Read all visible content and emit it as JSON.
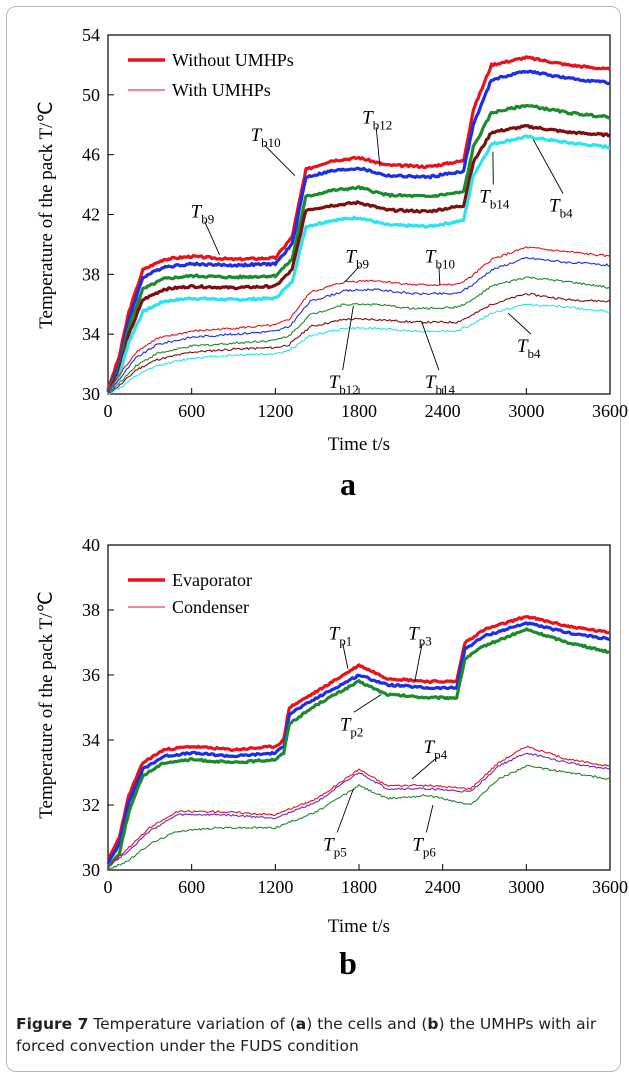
{
  "caption": {
    "label": "Figure 7",
    "parts": [
      " Temperature variation of (",
      "a",
      ") the cells and (",
      "b",
      ") the UMHPs with air forced convection under the FUDS condition"
    ]
  },
  "chart_data": [
    {
      "panel": "a",
      "type": "line",
      "xlabel": "Time t/s",
      "ylabel": "Temperature of the pack T/℃",
      "xlim": [
        0,
        3600
      ],
      "ylim": [
        30,
        54
      ],
      "xticks": [
        0,
        600,
        1200,
        1800,
        2400,
        3000,
        3600
      ],
      "yticks": [
        30,
        34,
        38,
        42,
        46,
        50,
        54
      ],
      "legend": [
        {
          "name": "Without UMHPs",
          "style": "thick",
          "color": "#e8121a"
        },
        {
          "name": "With UMHPs",
          "style": "thin",
          "color": "#e8121a"
        }
      ],
      "series": [
        {
          "name": "Tb9 (without)",
          "group": "Without UMHPs",
          "color": "#e8121a",
          "x": [
            0,
            80,
            150,
            250,
            400,
            600,
            900,
            1200,
            1320,
            1420,
            1600,
            1800,
            2000,
            2300,
            2550,
            2620,
            2750,
            3000,
            3300,
            3600
          ],
          "y": [
            30.3,
            32.5,
            35.5,
            38.3,
            39.0,
            39.2,
            39.0,
            39.1,
            40.5,
            45.0,
            45.6,
            45.8,
            45.3,
            45.2,
            45.6,
            49.0,
            52.0,
            52.5,
            52.0,
            51.7
          ]
        },
        {
          "name": "Tb10 (without)",
          "group": "Without UMHPs",
          "color": "#1c2ee6",
          "x": [
            0,
            80,
            150,
            250,
            400,
            600,
            900,
            1200,
            1320,
            1420,
            1600,
            1800,
            2000,
            2300,
            2550,
            2620,
            2750,
            3000,
            3300,
            3600
          ],
          "y": [
            30.2,
            32.0,
            35.0,
            37.8,
            38.5,
            38.7,
            38.6,
            38.7,
            40.0,
            44.5,
            44.9,
            45.1,
            44.6,
            44.5,
            44.9,
            48.0,
            51.0,
            51.6,
            51.1,
            50.8
          ]
        },
        {
          "name": "Tb12 (without)",
          "group": "Without UMHPs",
          "color": "#1e8a2e",
          "x": [
            0,
            80,
            150,
            250,
            400,
            600,
            900,
            1200,
            1320,
            1420,
            1600,
            1800,
            2000,
            2300,
            2550,
            2620,
            2750,
            3000,
            3300,
            3600
          ],
          "y": [
            30.2,
            31.7,
            34.5,
            37.0,
            37.7,
            37.9,
            37.8,
            37.9,
            39.0,
            43.2,
            43.6,
            43.8,
            43.3,
            43.2,
            43.5,
            46.5,
            48.8,
            49.3,
            48.8,
            48.5
          ]
        },
        {
          "name": "Tb14 (without)",
          "group": "Without UMHPs",
          "color": "#7a1010",
          "x": [
            0,
            80,
            150,
            250,
            400,
            600,
            900,
            1200,
            1320,
            1420,
            1600,
            1800,
            2000,
            2300,
            2550,
            2620,
            2750,
            3000,
            3300,
            3600
          ],
          "y": [
            30.1,
            31.5,
            34.0,
            36.3,
            37.0,
            37.2,
            37.1,
            37.2,
            38.3,
            42.3,
            42.6,
            42.8,
            42.3,
            42.2,
            42.6,
            45.5,
            47.5,
            47.9,
            47.5,
            47.3
          ]
        },
        {
          "name": "Tb4 (without)",
          "group": "Without UMHPs",
          "color": "#2ce3ee",
          "x": [
            0,
            80,
            150,
            250,
            400,
            600,
            900,
            1200,
            1320,
            1420,
            1600,
            1800,
            2000,
            2300,
            2550,
            2620,
            2750,
            3000,
            3300,
            3600
          ],
          "y": [
            30.0,
            31.2,
            33.5,
            35.5,
            36.2,
            36.4,
            36.3,
            36.4,
            37.5,
            41.2,
            41.6,
            41.8,
            41.3,
            41.2,
            41.6,
            44.6,
            46.7,
            47.2,
            46.8,
            46.5
          ]
        },
        {
          "name": "Tb9 (with)",
          "group": "With UMHPs",
          "color": "#e8121a",
          "x": [
            0,
            100,
            200,
            350,
            600,
            900,
            1200,
            1300,
            1450,
            1700,
            1900,
            2200,
            2500,
            2600,
            2750,
            3000,
            3300,
            3600
          ],
          "y": [
            30.2,
            31.5,
            32.8,
            33.7,
            34.2,
            34.4,
            34.6,
            35.0,
            36.8,
            37.5,
            37.6,
            37.3,
            37.3,
            37.8,
            39.0,
            39.8,
            39.5,
            39.2
          ]
        },
        {
          "name": "Tb10 (with)",
          "group": "With UMHPs",
          "color": "#1c2ee6",
          "x": [
            0,
            100,
            200,
            350,
            600,
            900,
            1200,
            1300,
            1450,
            1700,
            1900,
            2200,
            2500,
            2600,
            2750,
            3000,
            3300,
            3600
          ],
          "y": [
            30.1,
            31.2,
            32.4,
            33.3,
            33.8,
            34.0,
            34.2,
            34.5,
            36.2,
            36.9,
            37.0,
            36.7,
            36.7,
            37.2,
            38.3,
            39.1,
            38.8,
            38.6
          ]
        },
        {
          "name": "Tb12 (with)",
          "group": "With UMHPs",
          "color": "#1e8a2e",
          "x": [
            0,
            100,
            200,
            350,
            600,
            900,
            1200,
            1300,
            1450,
            1700,
            1900,
            2200,
            2500,
            2600,
            2750,
            3000,
            3300,
            3600
          ],
          "y": [
            30.0,
            30.9,
            31.9,
            32.7,
            33.2,
            33.4,
            33.6,
            33.9,
            35.3,
            36.0,
            36.0,
            35.7,
            35.8,
            36.2,
            37.2,
            37.8,
            37.5,
            37.1
          ]
        },
        {
          "name": "Tb14 (with)",
          "group": "With UMHPs",
          "color": "#7a1010",
          "x": [
            0,
            100,
            200,
            350,
            600,
            900,
            1200,
            1300,
            1450,
            1700,
            1900,
            2200,
            2500,
            2600,
            2750,
            3000,
            3300,
            3600
          ],
          "y": [
            30.0,
            30.7,
            31.6,
            32.3,
            32.8,
            33.0,
            33.1,
            33.3,
            34.5,
            35.0,
            35.0,
            34.8,
            34.8,
            35.2,
            36.0,
            36.7,
            36.3,
            36.2
          ]
        },
        {
          "name": "Tb4 (with)",
          "group": "With UMHPs",
          "color": "#2ce3ee",
          "x": [
            0,
            100,
            200,
            350,
            600,
            900,
            1200,
            1300,
            1450,
            1700,
            1900,
            2200,
            2500,
            2600,
            2750,
            3000,
            3300,
            3600
          ],
          "y": [
            30.0,
            30.5,
            31.2,
            31.9,
            32.4,
            32.6,
            32.7,
            32.9,
            33.9,
            34.4,
            34.4,
            34.2,
            34.2,
            34.6,
            35.4,
            36.0,
            35.8,
            35.5
          ]
        }
      ],
      "annotations": [
        {
          "base": "T",
          "sub": "b9",
          "at": [
            650,
            41.8
          ],
          "to": [
            800,
            39.3
          ]
        },
        {
          "base": "T",
          "sub": "b10",
          "at": [
            1080,
            46.9
          ],
          "to": [
            1340,
            44.6
          ]
        },
        {
          "base": "T",
          "sub": "b12",
          "at": [
            1880,
            48.1
          ],
          "to": [
            1950,
            45.2
          ]
        },
        {
          "base": "T",
          "sub": "b14",
          "at": [
            2720,
            42.8
          ],
          "to": [
            2760,
            46.2
          ]
        },
        {
          "base": "T",
          "sub": "b4",
          "at": [
            3220,
            42.2
          ],
          "to": [
            3050,
            47.0
          ]
        },
        {
          "base": "T",
          "sub": "b9",
          "at": [
            1760,
            38.8
          ],
          "to": [
            1700,
            37.5
          ]
        },
        {
          "base": "T",
          "sub": "b10",
          "at": [
            2330,
            38.8
          ],
          "to": [
            2380,
            37.3
          ]
        },
        {
          "base": "T",
          "sub": "b12",
          "at": [
            1640,
            30.4
          ],
          "to": [
            1760,
            35.9
          ]
        },
        {
          "base": "T",
          "sub": "b14",
          "at": [
            2330,
            30.4
          ],
          "to": [
            2250,
            34.8
          ]
        },
        {
          "base": "T",
          "sub": "b4",
          "at": [
            2990,
            32.8
          ],
          "to": [
            2870,
            35.4
          ]
        }
      ],
      "panel_label": "a"
    },
    {
      "panel": "b",
      "type": "line",
      "xlabel": "Time t/s",
      "ylabel": "Temperature of the pack T/℃",
      "xlim": [
        0,
        3600
      ],
      "ylim": [
        30,
        40
      ],
      "xticks": [
        0,
        600,
        1200,
        1800,
        2400,
        3000,
        3600
      ],
      "yticks": [
        30,
        32,
        34,
        36,
        38,
        40
      ],
      "legend": [
        {
          "name": "Evaporator",
          "style": "thick",
          "color": "#e8121a"
        },
        {
          "name": "Condenser",
          "style": "thin",
          "color": "#e8121a"
        }
      ],
      "series": [
        {
          "name": "Tp1",
          "group": "Evaporator",
          "color": "#e8121a",
          "x": [
            0,
            80,
            150,
            250,
            400,
            600,
            900,
            1200,
            1260,
            1300,
            1500,
            1800,
            2000,
            2300,
            2500,
            2560,
            2700,
            3000,
            3300,
            3600
          ],
          "y": [
            30.3,
            31.0,
            32.3,
            33.3,
            33.7,
            33.8,
            33.7,
            33.8,
            34.0,
            35.0,
            35.5,
            36.3,
            35.9,
            35.8,
            35.8,
            37.0,
            37.4,
            37.8,
            37.5,
            37.3
          ]
        },
        {
          "name": "Tp3",
          "group": "Evaporator",
          "color": "#1c2ee6",
          "x": [
            0,
            80,
            150,
            250,
            400,
            600,
            900,
            1200,
            1260,
            1300,
            1500,
            1800,
            2000,
            2300,
            2500,
            2560,
            2700,
            3000,
            3300,
            3600
          ],
          "y": [
            30.2,
            30.8,
            32.1,
            33.1,
            33.5,
            33.6,
            33.5,
            33.6,
            33.8,
            34.8,
            35.3,
            36.0,
            35.7,
            35.6,
            35.6,
            36.8,
            37.2,
            37.6,
            37.3,
            37.1
          ]
        },
        {
          "name": "Tp2",
          "group": "Evaporator",
          "color": "#1e8a2e",
          "x": [
            0,
            80,
            150,
            250,
            400,
            600,
            900,
            1200,
            1260,
            1300,
            1500,
            1800,
            2000,
            2300,
            2500,
            2560,
            2700,
            3000,
            3300,
            3600
          ],
          "y": [
            30.1,
            30.5,
            31.8,
            32.9,
            33.3,
            33.4,
            33.3,
            33.4,
            33.6,
            34.5,
            35.1,
            35.8,
            35.4,
            35.3,
            35.3,
            36.5,
            36.9,
            37.4,
            37.0,
            36.7
          ]
        },
        {
          "name": "Tp4",
          "group": "Condenser",
          "color": "#e8121a",
          "x": [
            0,
            150,
            300,
            500,
            800,
            1200,
            1500,
            1800,
            2000,
            2300,
            2600,
            2800,
            3000,
            3300,
            3600
          ],
          "y": [
            30.1,
            30.7,
            31.3,
            31.8,
            31.8,
            31.7,
            32.2,
            33.1,
            32.6,
            32.6,
            32.5,
            33.3,
            33.8,
            33.4,
            33.2
          ]
        },
        {
          "name": "Tp5",
          "group": "Condenser",
          "color": "#6a2ac8",
          "x": [
            0,
            150,
            300,
            500,
            800,
            1200,
            1500,
            1800,
            2000,
            2300,
            2600,
            2800,
            3000,
            3300,
            3600
          ],
          "y": [
            30.1,
            30.6,
            31.2,
            31.7,
            31.7,
            31.6,
            32.1,
            33.0,
            32.5,
            32.5,
            32.4,
            33.2,
            33.6,
            33.3,
            33.1
          ]
        },
        {
          "name": "Tp6",
          "group": "Condenser",
          "color": "#1e8a2e",
          "x": [
            0,
            150,
            300,
            500,
            800,
            1200,
            1500,
            1800,
            2000,
            2300,
            2600,
            2800,
            3000,
            3300,
            3600
          ],
          "y": [
            30.0,
            30.3,
            30.8,
            31.2,
            31.3,
            31.3,
            31.8,
            32.6,
            32.2,
            32.3,
            32.0,
            32.8,
            33.2,
            33.0,
            32.8
          ]
        }
      ],
      "annotations": [
        {
          "base": "T",
          "sub": "p1",
          "at": [
            1640,
            37.1
          ],
          "to": [
            1720,
            36.2
          ]
        },
        {
          "base": "T",
          "sub": "p3",
          "at": [
            2210,
            37.1
          ],
          "to": [
            2200,
            35.8
          ]
        },
        {
          "base": "T",
          "sub": "p2",
          "at": [
            1720,
            34.3
          ],
          "to": [
            1960,
            35.4
          ]
        },
        {
          "base": "T",
          "sub": "p4",
          "at": [
            2320,
            33.6
          ],
          "to": [
            2180,
            32.8
          ]
        },
        {
          "base": "T",
          "sub": "p5",
          "at": [
            1600,
            30.6
          ],
          "to": [
            1760,
            32.5
          ]
        },
        {
          "base": "T",
          "sub": "p6",
          "at": [
            2240,
            30.6
          ],
          "to": [
            2330,
            32.0
          ]
        }
      ],
      "panel_label": "b"
    }
  ]
}
